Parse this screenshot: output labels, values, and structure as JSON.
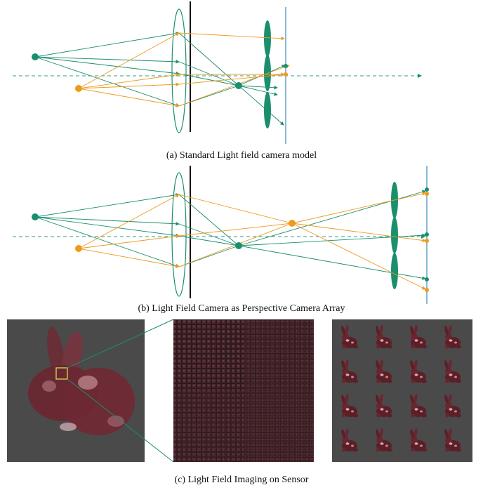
{
  "figure": {
    "caption_a": "(a) Standard Light field camera model",
    "caption_b": "(b) Light Field Camera as Perspective Camera Array",
    "caption_c": "(c) Light Field Imaging on Sensor"
  },
  "colors": {
    "green": "#1a8f6e",
    "orange": "#ee9a1e",
    "axis": "#2a9d8f",
    "sensor": "#3a8dbf",
    "aperture": "#111111",
    "background_panel": "#4a4a4a",
    "bunny": "#5b1f28",
    "highlight_box": "#c8d24a"
  }
}
